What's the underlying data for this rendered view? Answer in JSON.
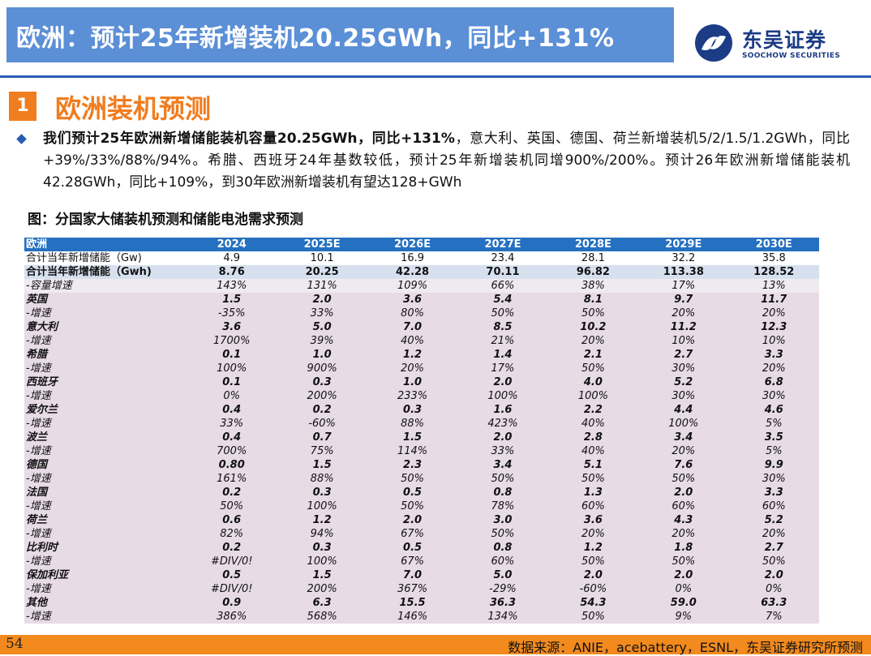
{
  "header": {
    "title": "欧洲：预计25年新增装机20.25GWh，同比+131%",
    "logo_cn": "东吴证券",
    "logo_en": "SOOCHOW SECURITIES",
    "logo_icon": "soochow-logo-icon",
    "accent": "#5b8fd6"
  },
  "section": {
    "number": "1",
    "title": "欧洲装机预测",
    "color": "#f07d1f"
  },
  "summary": {
    "bold_part": "我们预计25年欧洲新增储能装机容量20.25GWh，同比+131%",
    "rest": "，意大利、英国、德国、荷兰新增装机5/2/1.5/1.2GWh，同比+39%/33%/88%/94%。希腊、西班牙24年基数较低，预计25年新增装机同增900%/200%。预计26年欧洲新增储能装机42.28GWh，同比+109%，到30年欧洲新增装机有望达128+GWh"
  },
  "figure": {
    "title": "图：分国家大储装机预测和储能电池需求预测"
  },
  "table": {
    "header": [
      "欧洲",
      "2024",
      "2025E",
      "2026E",
      "2027E",
      "2028E",
      "2029E",
      "2030E"
    ],
    "rows": [
      {
        "type": "t1",
        "cells": [
          "合计当年新增储能（Gw)",
          "4.9",
          "10.1",
          "16.9",
          "23.4",
          "28.1",
          "32.2",
          "35.8"
        ]
      },
      {
        "type": "t2",
        "cells": [
          "合计当年新增储能（Gwh)",
          "8.76",
          "20.25",
          "42.28",
          "70.11",
          "96.82",
          "113.38",
          "128.52"
        ]
      },
      {
        "type": "t3",
        "cells": [
          "-容量增速",
          "143%",
          "131%",
          "109%",
          "66%",
          "38%",
          "17%",
          "13%"
        ]
      },
      {
        "type": "c",
        "cells": [
          "英国",
          "1.5",
          "2.0",
          "3.6",
          "5.4",
          "8.1",
          "9.7",
          "11.7"
        ]
      },
      {
        "type": "g",
        "cells": [
          "-增速",
          "-35%",
          "33%",
          "80%",
          "50%",
          "50%",
          "20%",
          "20%"
        ]
      },
      {
        "type": "c",
        "cells": [
          "意大利",
          "3.6",
          "5.0",
          "7.0",
          "8.5",
          "10.2",
          "11.2",
          "12.3"
        ]
      },
      {
        "type": "g",
        "cells": [
          "-增速",
          "1700%",
          "39%",
          "40%",
          "21%",
          "20%",
          "10%",
          "10%"
        ]
      },
      {
        "type": "c",
        "cells": [
          "希腊",
          "0.1",
          "1.0",
          "1.2",
          "1.4",
          "2.1",
          "2.7",
          "3.3"
        ]
      },
      {
        "type": "g",
        "cells": [
          "-增速",
          "100%",
          "900%",
          "20%",
          "17%",
          "50%",
          "30%",
          "20%"
        ]
      },
      {
        "type": "c",
        "cells": [
          "西班牙",
          "0.1",
          "0.3",
          "1.0",
          "2.0",
          "4.0",
          "5.2",
          "6.8"
        ]
      },
      {
        "type": "g",
        "cells": [
          "-增速",
          "0%",
          "200%",
          "233%",
          "100%",
          "100%",
          "30%",
          "30%"
        ]
      },
      {
        "type": "c",
        "cells": [
          "爱尔兰",
          "0.4",
          "0.2",
          "0.3",
          "1.6",
          "2.2",
          "4.4",
          "4.6"
        ]
      },
      {
        "type": "g",
        "cells": [
          "-增速",
          "33%",
          "-60%",
          "88%",
          "423%",
          "40%",
          "100%",
          "5%"
        ]
      },
      {
        "type": "c",
        "cells": [
          "波兰",
          "0.4",
          "0.7",
          "1.5",
          "2.0",
          "2.8",
          "3.4",
          "3.5"
        ]
      },
      {
        "type": "g",
        "cells": [
          "-增速",
          "700%",
          "75%",
          "114%",
          "33%",
          "40%",
          "20%",
          "5%"
        ]
      },
      {
        "type": "c",
        "cells": [
          "德国",
          "0.80",
          "1.5",
          "2.3",
          "3.4",
          "5.1",
          "7.6",
          "9.9"
        ]
      },
      {
        "type": "g",
        "cells": [
          "-增速",
          "161%",
          "88%",
          "50%",
          "50%",
          "50%",
          "50%",
          "30%"
        ]
      },
      {
        "type": "c",
        "cells": [
          "法国",
          "0.2",
          "0.3",
          "0.5",
          "0.8",
          "1.3",
          "2.0",
          "3.3"
        ]
      },
      {
        "type": "g",
        "cells": [
          "-增速",
          "50%",
          "100%",
          "50%",
          "78%",
          "60%",
          "60%",
          "60%"
        ]
      },
      {
        "type": "c",
        "cells": [
          "荷兰",
          "0.6",
          "1.2",
          "2.0",
          "3.0",
          "3.6",
          "4.3",
          "5.2"
        ]
      },
      {
        "type": "g",
        "cells": [
          "-增速",
          "82%",
          "94%",
          "67%",
          "50%",
          "20%",
          "20%",
          "20%"
        ]
      },
      {
        "type": "c",
        "cells": [
          "比利时",
          "0.2",
          "0.3",
          "0.5",
          "0.8",
          "1.2",
          "1.8",
          "2.7"
        ]
      },
      {
        "type": "g",
        "cells": [
          "-增速",
          "#DIV/0!",
          "100%",
          "67%",
          "60%",
          "50%",
          "50%",
          "50%"
        ]
      },
      {
        "type": "c",
        "cells": [
          "保加利亚",
          "0.5",
          "1.5",
          "7.0",
          "5.0",
          "2.0",
          "2.0",
          "2.0"
        ]
      },
      {
        "type": "g",
        "cells": [
          "-增速",
          "#DIV/0!",
          "200%",
          "367%",
          "-29%",
          "-60%",
          "0%",
          "0%"
        ]
      },
      {
        "type": "c",
        "cells": [
          "其他",
          "0.9",
          "6.3",
          "15.5",
          "36.3",
          "54.3",
          "59.0",
          "63.3"
        ]
      },
      {
        "type": "g",
        "cells": [
          "-增速",
          "386%",
          "568%",
          "146%",
          "134%",
          "50%",
          "9%",
          "7%"
        ]
      }
    ]
  },
  "footer": {
    "page": "54",
    "source": "数据来源：ANIE，acebattery，ESNL，东吴证券研究所预测"
  }
}
